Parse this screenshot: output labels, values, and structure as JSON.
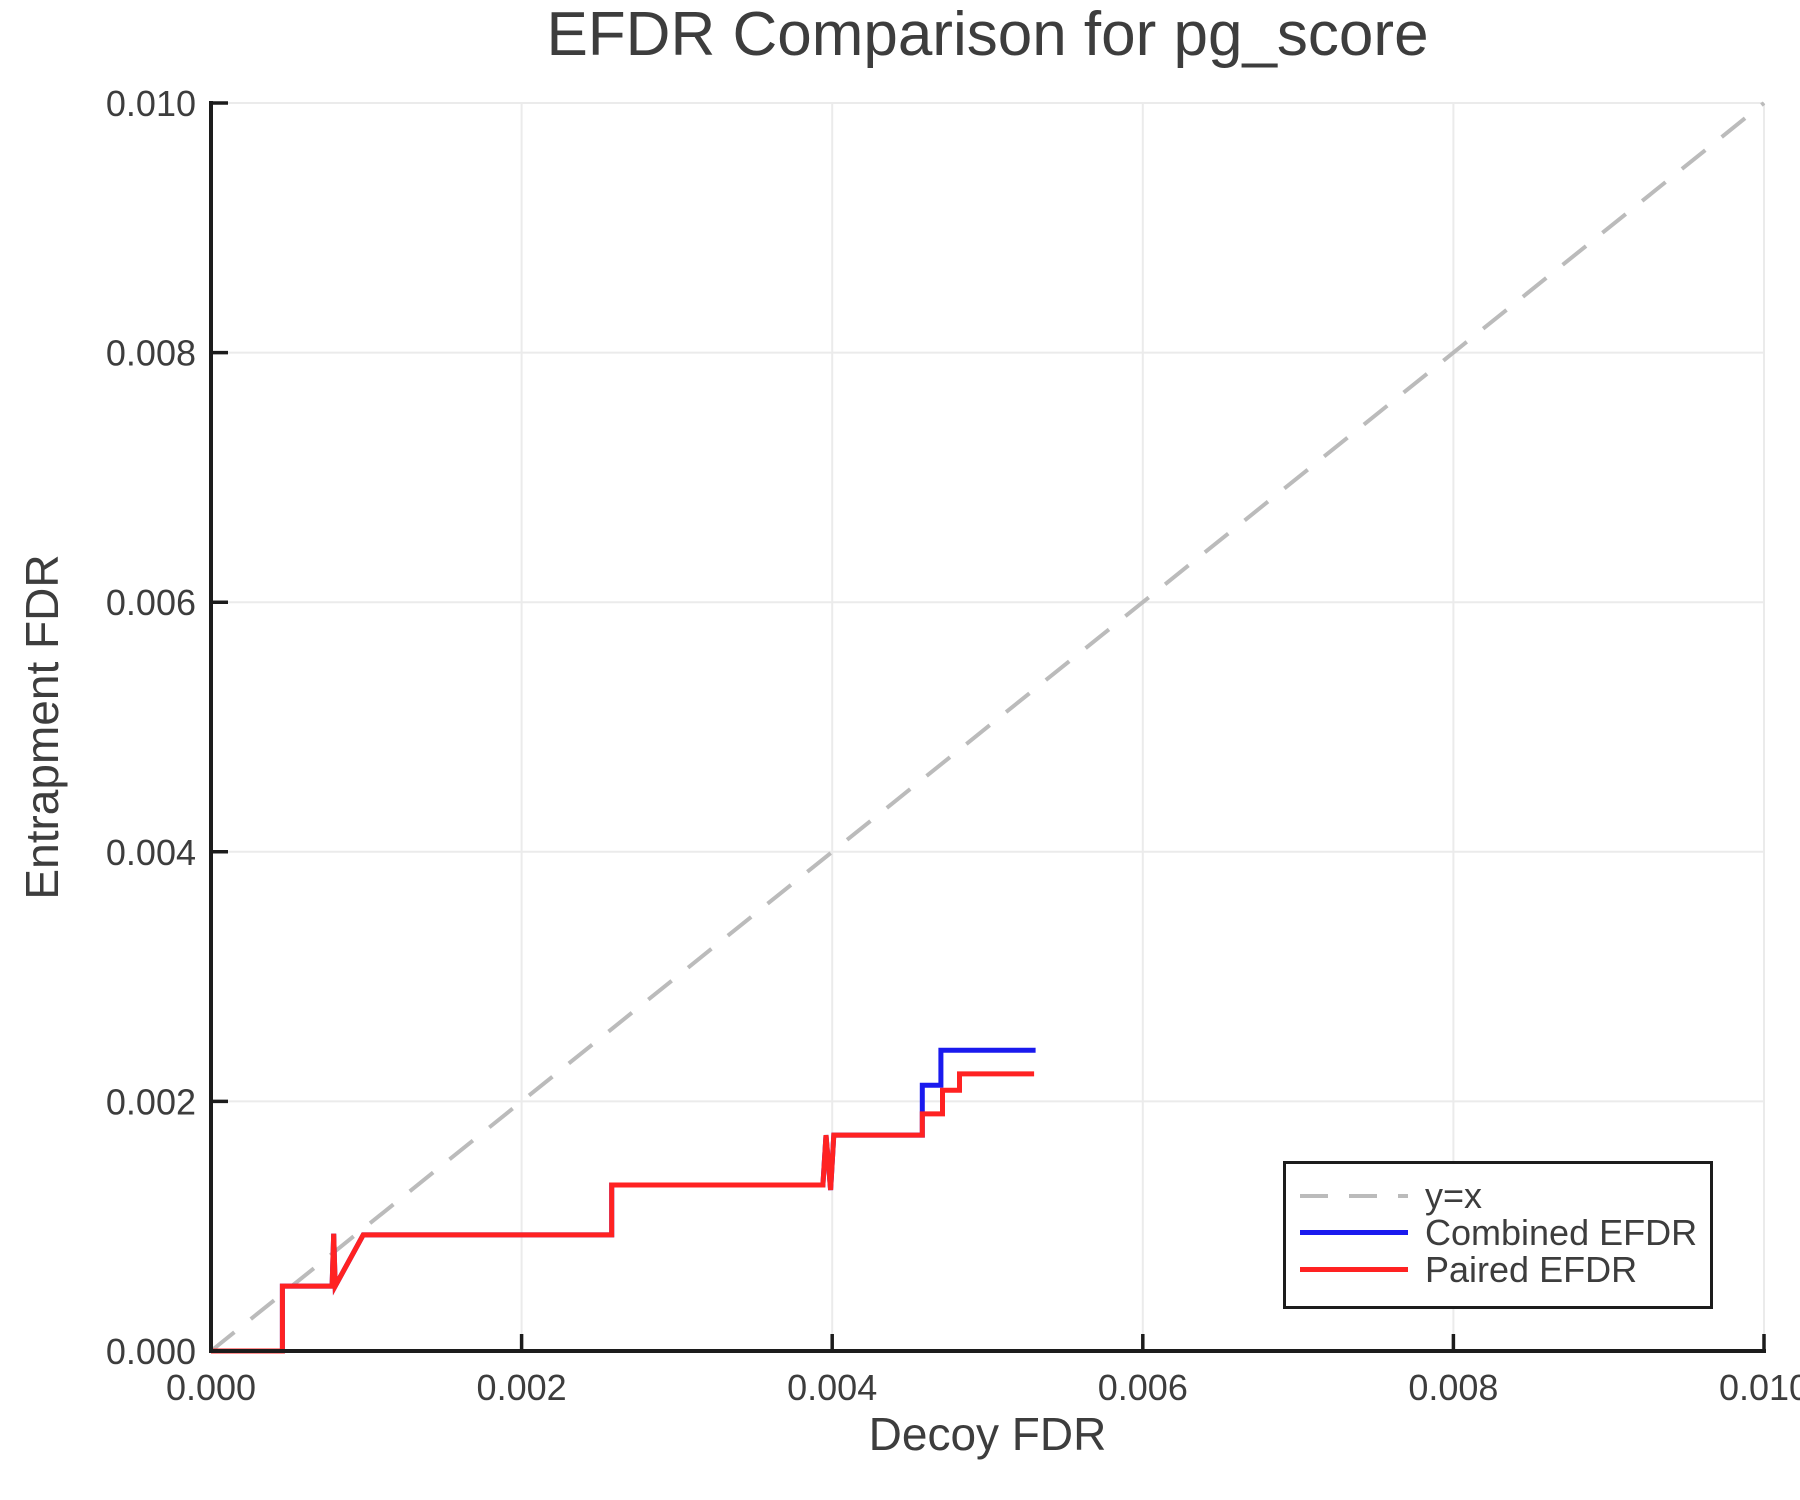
{
  "chart_data": {
    "type": "line",
    "title": "EFDR Comparison for pg_score",
    "xlabel": "Decoy FDR",
    "ylabel": "Entrapment FDR",
    "xlim": [
      0.0,
      0.01
    ],
    "ylim": [
      0.0,
      0.01
    ],
    "grid": true,
    "x_ticks": {
      "values": [
        0.0,
        0.002,
        0.004,
        0.006,
        0.008,
        0.01
      ],
      "labels": [
        "0.000",
        "0.002",
        "0.004",
        "0.006",
        "0.008",
        "0.010"
      ]
    },
    "y_ticks": {
      "values": [
        0.0,
        0.002,
        0.004,
        0.006,
        0.008,
        0.01
      ],
      "labels": [
        "0.000",
        "0.002",
        "0.004",
        "0.006",
        "0.008",
        "0.010"
      ]
    },
    "series": [
      {
        "name": "y=x",
        "style": "dashed",
        "color": "#bbbbbb",
        "width": 4,
        "points": [
          [
            0.0,
            0.0
          ],
          [
            0.01,
            0.01
          ]
        ]
      },
      {
        "name": "Combined EFDR",
        "style": "solid",
        "color": "#1a1aee",
        "width": 5,
        "points": [
          [
            0.0,
            0.0
          ],
          [
            0.00046,
            0.0
          ],
          [
            0.00046,
            0.00052
          ],
          [
            0.00078,
            0.00052
          ],
          [
            0.00079,
            0.00094
          ],
          [
            0.0008,
            0.00052
          ],
          [
            0.00098,
            0.00093
          ],
          [
            0.00258,
            0.00093
          ],
          [
            0.00258,
            0.00133
          ],
          [
            0.00394,
            0.00133
          ],
          [
            0.00396,
            0.00173
          ],
          [
            0.00399,
            0.00129
          ],
          [
            0.00401,
            0.00173
          ],
          [
            0.00458,
            0.00173
          ],
          [
            0.00458,
            0.00213
          ],
          [
            0.0047,
            0.00213
          ],
          [
            0.0047,
            0.00241
          ],
          [
            0.00531,
            0.00241
          ]
        ]
      },
      {
        "name": "Paired EFDR",
        "style": "solid",
        "color": "#ff2222",
        "width": 5,
        "points": [
          [
            0.0,
            0.0
          ],
          [
            0.00046,
            0.0
          ],
          [
            0.00046,
            0.00052
          ],
          [
            0.00078,
            0.00052
          ],
          [
            0.00079,
            0.00094
          ],
          [
            0.0008,
            0.00052
          ],
          [
            0.00098,
            0.00093
          ],
          [
            0.00258,
            0.00093
          ],
          [
            0.00258,
            0.00133
          ],
          [
            0.00394,
            0.00133
          ],
          [
            0.00396,
            0.00173
          ],
          [
            0.00399,
            0.00129
          ],
          [
            0.00401,
            0.00173
          ],
          [
            0.00458,
            0.00173
          ],
          [
            0.00458,
            0.0019
          ],
          [
            0.00471,
            0.0019
          ],
          [
            0.00471,
            0.00209
          ],
          [
            0.00482,
            0.00209
          ],
          [
            0.00482,
            0.00222
          ],
          [
            0.0053,
            0.00222
          ]
        ]
      }
    ],
    "legend": {
      "position": "lower right",
      "entries": [
        {
          "label": "y=x",
          "style": "dashed",
          "color": "#bbbbbb"
        },
        {
          "label": "Combined EFDR",
          "style": "solid",
          "color": "#1a1aee"
        },
        {
          "label": "Paired EFDR",
          "style": "solid",
          "color": "#ff2222"
        }
      ]
    },
    "colors": {
      "grid": "#ebebeb",
      "spine": "#1c1c1c",
      "tick_text": "#3d3d3d",
      "background": "#ffffff"
    }
  }
}
